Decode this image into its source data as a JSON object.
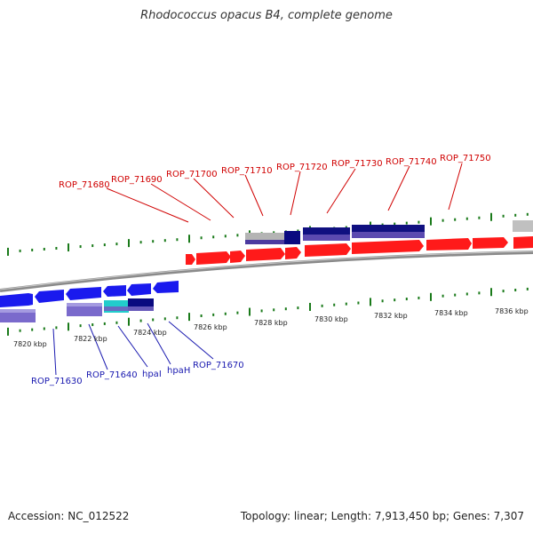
{
  "title": "Rhodococcus opacus B4, complete genome",
  "footer": {
    "accession": "Accession: NC_012522",
    "stats": "Topology: linear; Length: 7,913,450 bp; Genes: 7,307"
  },
  "scale_labels": [
    "7820 kbp",
    "7822 kbp",
    "7824 kbp",
    "7826 kbp",
    "7828 kbp",
    "7830 kbp",
    "7832 kbp",
    "7834 kbp",
    "7836 kbp"
  ],
  "top_gene_labels": [
    "ROP_71680",
    "ROP_71690",
    "ROP_71700",
    "ROP_71710",
    "ROP_71720",
    "ROP_71730",
    "ROP_71740",
    "ROP_71750"
  ],
  "bottom_gene_labels": [
    "ROP_71630",
    "ROP_71640",
    "hpaI",
    "hpaH",
    "ROP_71670"
  ],
  "colors": {
    "forward_gene": "#ff1a1a",
    "reverse_gene": "#1a1aee",
    "feature_purple": "#7a6acc",
    "feature_cyan": "#22cccc",
    "feature_navy": "#0a0a80",
    "feature_grey": "#b4b4b4",
    "top_label": "#d00000",
    "bottom_label": "#1a1ab0",
    "tick": "#1a7a1a",
    "backbone": "#909090"
  }
}
